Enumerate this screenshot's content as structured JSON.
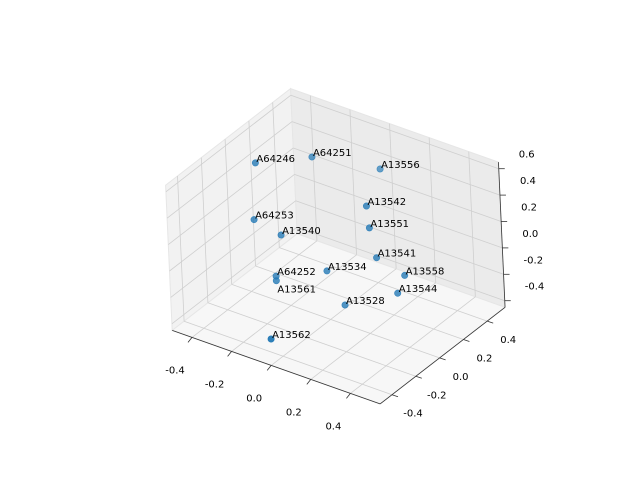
{
  "chart_data": {
    "type": "scatter",
    "projection": "3d",
    "title": "",
    "xlabel": "",
    "ylabel": "",
    "zlabel": "",
    "xlim": [
      -0.5,
      0.55
    ],
    "ylim": [
      -0.5,
      0.55
    ],
    "zlim": [
      -0.45,
      0.65
    ],
    "grid": true,
    "marker_color": "#1f77b4",
    "xticks": [
      "-0.4",
      "-0.2",
      "0.0",
      "0.2",
      "0.4"
    ],
    "yticks": [
      "-0.4",
      "-0.2",
      "0.0",
      "0.2",
      "0.4"
    ],
    "zticks": [
      "-0.4",
      "-0.2",
      "0.0",
      "0.2",
      "0.4",
      "0.6"
    ],
    "points": [
      {
        "label": "A64246",
        "x": -0.35,
        "y": 0.0,
        "z": 0.55
      },
      {
        "label": "A64251",
        "x": -0.15,
        "y": 0.145,
        "z": 0.6
      },
      {
        "label": "A13556",
        "x": 0.14,
        "y": 0.235,
        "z": 0.6
      },
      {
        "label": "A13542",
        "x": 0.21,
        "y": 0.0,
        "z": 0.52
      },
      {
        "label": "A64253",
        "x": -0.37,
        "y": 0.0,
        "z": 0.11
      },
      {
        "label": "A13551",
        "x": 0.22,
        "y": 0.0,
        "z": 0.36
      },
      {
        "label": "A13540",
        "x": -0.235,
        "y": 0.0,
        "z": 0.065
      },
      {
        "label": "A13541",
        "x": 0.25,
        "y": 0.0,
        "z": 0.15
      },
      {
        "label": "A13534",
        "x": -0.008,
        "y": 0.0,
        "z": -0.087
      },
      {
        "label": "A64252",
        "x": -0.27,
        "y": 0.0,
        "z": -0.265
      },
      {
        "label": "A13561",
        "x": -0.27,
        "y": 0.0,
        "z": -0.3
      },
      {
        "label": "A13558",
        "x": 0.39,
        "y": 0.0,
        "z": 0.09
      },
      {
        "label": "A13544",
        "x": 0.35,
        "y": 0.0,
        "z": -0.066
      },
      {
        "label": "A13528",
        "x": 0.077,
        "y": 0.0,
        "z": -0.3
      },
      {
        "label": "A13562",
        "x": -0.088,
        "y": -0.352,
        "z": -0.4
      }
    ]
  }
}
